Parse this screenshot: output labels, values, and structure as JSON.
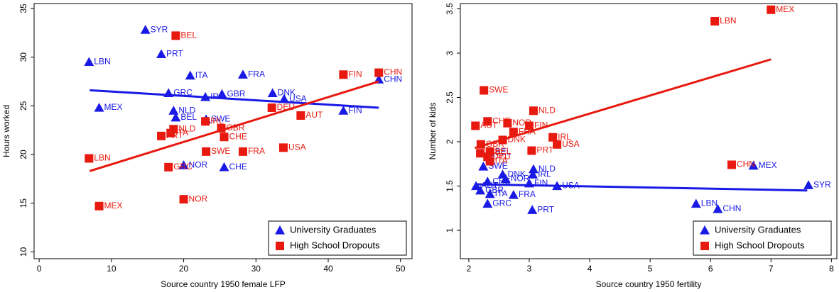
{
  "chart_data": [
    {
      "type": "scatter",
      "x_label": "Source country 1950 female LFP",
      "y_label": "Hours worked",
      "xlim": [
        -0.7,
        51.6
      ],
      "ylim": [
        9.3,
        35.5
      ],
      "xticks": [
        0,
        10,
        20,
        30,
        40,
        50
      ],
      "yticks": [
        10,
        15,
        20,
        25,
        30,
        35
      ],
      "legend": "lower right",
      "series": [
        {
          "name": "University Graduates",
          "color": "#1a1ae6",
          "marker": "triangle",
          "labels": [
            "SYR",
            "PRT",
            "LBN",
            "ITA",
            "FRA",
            "GRC",
            "IRL",
            "GBR",
            "DNK",
            "USA",
            "CHN",
            "FIN",
            "MEX",
            "NLD",
            "BEL",
            "SWE",
            "NOR",
            "CHE"
          ],
          "x": [
            14.7,
            16.9,
            6.9,
            20.9,
            28.2,
            17.9,
            23.0,
            25.3,
            32.3,
            33.9,
            47.0,
            42.1,
            8.3,
            18.6,
            18.9,
            23.1,
            20.0,
            25.6
          ],
          "values": [
            32.8,
            30.3,
            29.5,
            28.1,
            28.2,
            26.3,
            25.9,
            26.2,
            26.3,
            25.7,
            27.7,
            24.5,
            24.8,
            24.5,
            23.8,
            23.6,
            18.9,
            18.7
          ],
          "fit_x": [
            7,
            47
          ],
          "fit_y": [
            26.6,
            24.8
          ]
        },
        {
          "name": "High School Dropouts",
          "color": "#e8190f",
          "marker": "square",
          "labels": [
            "BEL",
            "FIN",
            "CHN",
            "DEU",
            "AUT",
            "NLD",
            "ITA",
            "PRT",
            "IRL",
            "GBR",
            "CHE",
            "SWE",
            "FRA",
            "USA",
            "LBN",
            "GRC",
            "NOR",
            "MEX"
          ],
          "x": [
            18.9,
            42.1,
            47.0,
            32.2,
            36.2,
            18.6,
            18.2,
            16.9,
            23.0,
            25.2,
            25.6,
            23.1,
            28.2,
            33.8,
            6.9,
            17.9,
            20.0,
            8.3
          ],
          "values": [
            32.2,
            28.2,
            28.4,
            24.8,
            24.0,
            22.6,
            22.2,
            21.9,
            23.4,
            22.7,
            21.8,
            20.3,
            20.3,
            20.7,
            19.6,
            18.7,
            15.4,
            14.7
          ],
          "fit_x": [
            7,
            47
          ],
          "fit_y": [
            18.3,
            27.5
          ]
        }
      ]
    },
    {
      "type": "scatter",
      "x_label": "Source country 1950 fertility",
      "y_label": "Number of kids",
      "xlim": [
        1.86,
        8.09
      ],
      "ylim": [
        0.68,
        3.56
      ],
      "xticks": [
        2,
        3,
        4,
        5,
        6,
        7,
        8
      ],
      "yticks": [
        1,
        1.5,
        2,
        2.5,
        3,
        3.5
      ],
      "legend": "lower right",
      "series": [
        {
          "name": "University Graduates",
          "color": "#1a1ae6",
          "marker": "triangle",
          "labels": [
            "MEX",
            "SYR",
            "LBN",
            "CHN",
            "SWE",
            "NLD",
            "IRL",
            "DNK",
            "NOR",
            "FIN",
            "USA",
            "CHE",
            "FRA",
            "GRC",
            "PRT",
            "ITA",
            "BEL",
            "AUT",
            "GBR"
          ],
          "x": [
            6.71,
            7.62,
            5.76,
            6.12,
            2.24,
            3.07,
            3.06,
            2.56,
            2.61,
            3.0,
            3.46,
            2.31,
            2.74,
            2.31,
            3.05,
            2.35,
            2.35,
            2.12,
            2.19
          ],
          "values": [
            1.73,
            1.51,
            1.3,
            1.24,
            1.72,
            1.69,
            1.63,
            1.63,
            1.58,
            1.53,
            1.5,
            1.55,
            1.4,
            1.3,
            1.23,
            1.41,
            1.88,
            1.5,
            1.45
          ],
          "fit_x": [
            2.1,
            7.6
          ],
          "fit_y": [
            1.52,
            1.45
          ]
        },
        {
          "name": "High School Dropouts",
          "color": "#e8190f",
          "marker": "square",
          "labels": [
            "MEX",
            "LBN",
            "SWE",
            "NLD",
            "CHE",
            "NOR",
            "FIN",
            "AUT",
            "FRA",
            "IRL",
            "DNK",
            "USA",
            "GBR",
            "PRT",
            "CHN",
            "BEL",
            "GRC",
            "DEU",
            "ITA"
          ],
          "x": [
            7.0,
            6.07,
            2.25,
            3.07,
            2.31,
            2.64,
            3.0,
            2.11,
            2.74,
            3.39,
            2.56,
            3.46,
            2.2,
            3.04,
            6.35,
            2.35,
            2.19,
            2.31,
            2.35
          ],
          "values": [
            3.49,
            3.36,
            2.58,
            2.35,
            2.23,
            2.21,
            2.18,
            2.18,
            2.11,
            2.05,
            2.02,
            1.97,
            1.97,
            1.9,
            1.74,
            1.89,
            1.87,
            1.83,
            1.78
          ],
          "fit_x": [
            2.1,
            7.0
          ],
          "fit_y": [
            1.93,
            2.93
          ]
        }
      ]
    }
  ]
}
